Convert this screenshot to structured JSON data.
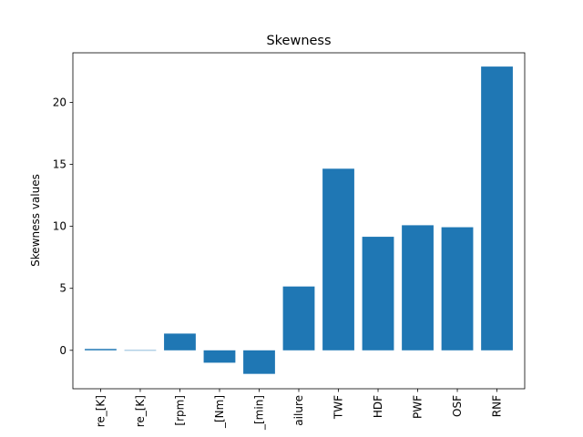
{
  "chart_data": {
    "type": "bar",
    "title": "Skewness",
    "xlabel": "",
    "ylabel": "Skewness values",
    "categories": [
      "re_[K]",
      "re_[K]",
      "[rpm]",
      "_[Nm]",
      "_[min]",
      "ailure",
      "TWF",
      "HDF",
      "PWF",
      "OSF",
      "RNF"
    ],
    "values": [
      0.11,
      0.01,
      1.35,
      -1.0,
      -1.9,
      5.15,
      14.65,
      9.16,
      10.09,
      9.93,
      22.89
    ],
    "ylim": [
      -3.1,
      24.0
    ],
    "yticks": [
      0,
      5,
      10,
      15,
      20
    ],
    "bar_color": "#1f77b4",
    "grid": false
  }
}
